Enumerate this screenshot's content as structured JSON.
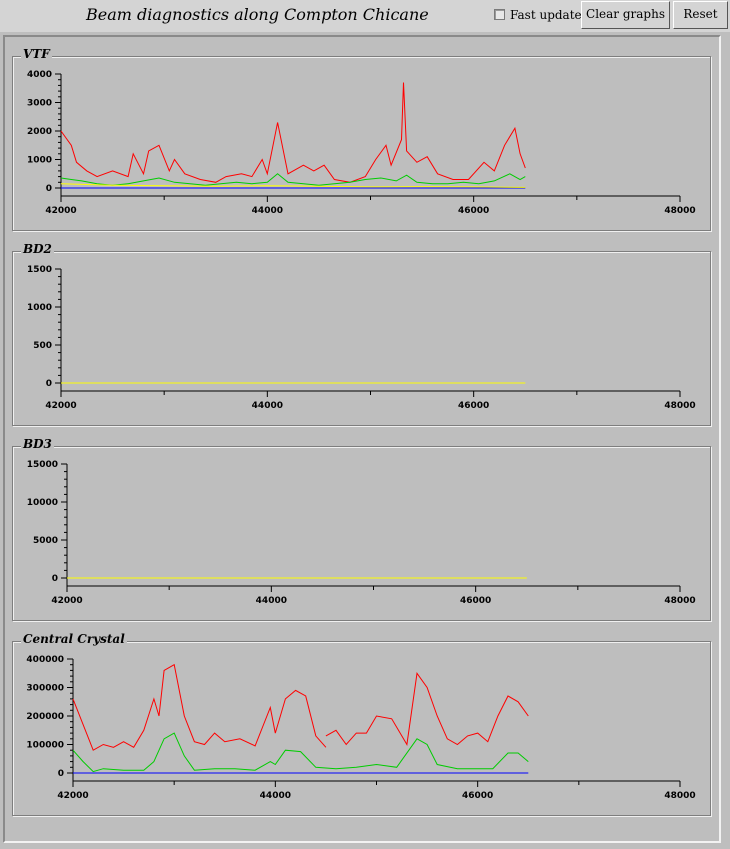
{
  "header": {
    "title": "Beam diagnostics along Compton Chicane",
    "fast_updates_label": "Fast updates",
    "fast_updates_checked": false,
    "clear_graphs_label": "Clear graphs",
    "reset_label": "Reset"
  },
  "colors": {
    "background": "#bebebe",
    "red": "#ff0000",
    "green": "#00cc00",
    "blue": "#0000ff",
    "yellow": "#ffff00"
  },
  "chart_data": [
    {
      "type": "line",
      "title": "VTF",
      "xlim": [
        42000,
        48000
      ],
      "ylim": [
        0,
        4000
      ],
      "x_ticks": [
        42000,
        44000,
        46000,
        48000
      ],
      "y_ticks": [
        0,
        1000,
        2000,
        3000,
        4000
      ],
      "series": [
        {
          "color": "#ff0000",
          "points": [
            [
              42000,
              2000
            ],
            [
              42100,
              1500
            ],
            [
              42150,
              900
            ],
            [
              42250,
              600
            ],
            [
              42350,
              400
            ],
            [
              42500,
              600
            ],
            [
              42650,
              400
            ],
            [
              42700,
              1200
            ],
            [
              42800,
              500
            ],
            [
              42850,
              1300
            ],
            [
              42950,
              1500
            ],
            [
              43050,
              600
            ],
            [
              43100,
              1000
            ],
            [
              43200,
              500
            ],
            [
              43350,
              300
            ],
            [
              43500,
              200
            ],
            [
              43600,
              400
            ],
            [
              43750,
              500
            ],
            [
              43850,
              400
            ],
            [
              43950,
              1000
            ],
            [
              44000,
              500
            ],
            [
              44100,
              2300
            ],
            [
              44200,
              500
            ],
            [
              44350,
              800
            ],
            [
              44450,
              600
            ],
            [
              44550,
              800
            ],
            [
              44650,
              300
            ],
            [
              44800,
              200
            ],
            [
              44950,
              400
            ],
            [
              45050,
              1000
            ],
            [
              45150,
              1500
            ],
            [
              45200,
              800
            ],
            [
              45300,
              1700
            ],
            [
              45320,
              3700
            ],
            [
              45350,
              1300
            ],
            [
              45450,
              900
            ],
            [
              45550,
              1100
            ],
            [
              45650,
              500
            ],
            [
              45800,
              300
            ],
            [
              45950,
              300
            ],
            [
              46100,
              900
            ],
            [
              46200,
              600
            ],
            [
              46300,
              1500
            ],
            [
              46400,
              2100
            ],
            [
              46450,
              1200
            ],
            [
              46500,
              700
            ]
          ]
        },
        {
          "color": "#00cc00",
          "points": [
            [
              42000,
              350
            ],
            [
              42100,
              300
            ],
            [
              42200,
              250
            ],
            [
              42350,
              150
            ],
            [
              42500,
              100
            ],
            [
              42650,
              150
            ],
            [
              42800,
              250
            ],
            [
              42950,
              350
            ],
            [
              43100,
              200
            ],
            [
              43250,
              150
            ],
            [
              43400,
              100
            ],
            [
              43550,
              150
            ],
            [
              43700,
              200
            ],
            [
              43850,
              150
            ],
            [
              44000,
              200
            ],
            [
              44100,
              500
            ],
            [
              44200,
              200
            ],
            [
              44350,
              150
            ],
            [
              44500,
              100
            ],
            [
              44650,
              150
            ],
            [
              44800,
              200
            ],
            [
              44950,
              300
            ],
            [
              45100,
              350
            ],
            [
              45250,
              250
            ],
            [
              45350,
              450
            ],
            [
              45450,
              200
            ],
            [
              45600,
              150
            ],
            [
              45750,
              150
            ],
            [
              45900,
              200
            ],
            [
              46050,
              150
            ],
            [
              46200,
              250
            ],
            [
              46350,
              500
            ],
            [
              46450,
              300
            ],
            [
              46500,
              400
            ]
          ]
        },
        {
          "color": "#0000ff",
          "points": [
            [
              42000,
              0
            ],
            [
              42500,
              0
            ],
            [
              43000,
              0
            ],
            [
              43500,
              0
            ],
            [
              44000,
              0
            ],
            [
              44500,
              0
            ],
            [
              45000,
              0
            ],
            [
              45500,
              0
            ],
            [
              46000,
              0
            ],
            [
              46500,
              0
            ]
          ]
        },
        {
          "color": "#ffff00",
          "points": [
            [
              42000,
              150
            ],
            [
              42500,
              100
            ],
            [
              43000,
              80
            ],
            [
              43500,
              60
            ],
            [
              44000,
              80
            ],
            [
              44500,
              60
            ],
            [
              45000,
              40
            ],
            [
              45500,
              50
            ],
            [
              46000,
              40
            ],
            [
              46500,
              20
            ]
          ]
        }
      ]
    },
    {
      "type": "line",
      "title": "BD2",
      "xlim": [
        42000,
        48000
      ],
      "ylim": [
        0,
        1500
      ],
      "x_ticks": [
        42000,
        44000,
        46000,
        48000
      ],
      "y_ticks": [
        0,
        500,
        1000,
        1500
      ],
      "series": [
        {
          "color": "#ffff00",
          "points": [
            [
              42000,
              0
            ],
            [
              46500,
              0
            ]
          ]
        }
      ]
    },
    {
      "type": "line",
      "title": "BD3",
      "xlim": [
        42000,
        48000
      ],
      "ylim": [
        0,
        15000
      ],
      "x_ticks": [
        42000,
        44000,
        46000,
        48000
      ],
      "y_ticks": [
        0,
        5000,
        10000,
        15000
      ],
      "series": [
        {
          "color": "#ffff00",
          "points": [
            [
              42000,
              0
            ],
            [
              46500,
              0
            ]
          ]
        }
      ]
    },
    {
      "type": "line",
      "title": "Central Crystal",
      "xlim": [
        42000,
        48000
      ],
      "ylim": [
        0,
        400000
      ],
      "x_ticks": [
        42000,
        44000,
        46000,
        48000
      ],
      "y_ticks": [
        0,
        100000,
        200000,
        300000,
        400000
      ],
      "series": [
        {
          "color": "#ff0000",
          "points": [
            [
              42000,
              260000
            ],
            [
              42100,
              170000
            ],
            [
              42200,
              80000
            ],
            [
              42300,
              100000
            ],
            [
              42400,
              90000
            ],
            [
              42500,
              110000
            ],
            [
              42600,
              90000
            ],
            [
              42700,
              150000
            ],
            [
              42800,
              260000
            ],
            [
              42850,
              200000
            ],
            [
              42900,
              360000
            ],
            [
              43000,
              380000
            ],
            [
              43100,
              200000
            ],
            [
              43200,
              110000
            ],
            [
              43300,
              100000
            ],
            [
              43400,
              140000
            ],
            [
              43500,
              110000
            ],
            [
              43650,
              120000
            ],
            [
              43800,
              95000
            ],
            [
              43950,
              230000
            ],
            [
              44000,
              140000
            ],
            [
              44100,
              260000
            ],
            [
              44200,
              290000
            ],
            [
              44300,
              270000
            ],
            [
              44400,
              130000
            ],
            [
              44500,
              90000
            ]
          ]
        },
        {
          "color": "#ff0000",
          "points": [
            [
              44500,
              130000
            ],
            [
              44600,
              150000
            ],
            [
              44700,
              100000
            ],
            [
              44800,
              140000
            ],
            [
              44900,
              140000
            ],
            [
              45000,
              200000
            ],
            [
              45150,
              190000
            ],
            [
              45300,
              100000
            ],
            [
              45400,
              350000
            ],
            [
              45500,
              300000
            ],
            [
              45600,
              200000
            ],
            [
              45700,
              120000
            ],
            [
              45800,
              100000
            ],
            [
              45900,
              130000
            ],
            [
              46000,
              140000
            ],
            [
              46100,
              110000
            ],
            [
              46200,
              200000
            ],
            [
              46300,
              270000
            ],
            [
              46400,
              250000
            ],
            [
              46500,
              200000
            ]
          ]
        },
        {
          "color": "#00cc00",
          "points": [
            [
              42000,
              80000
            ],
            [
              42100,
              40000
            ],
            [
              42200,
              5000
            ],
            [
              42300,
              15000
            ],
            [
              42500,
              10000
            ],
            [
              42700,
              10000
            ],
            [
              42800,
              40000
            ],
            [
              42900,
              120000
            ],
            [
              43000,
              140000
            ],
            [
              43100,
              60000
            ],
            [
              43200,
              10000
            ],
            [
              43400,
              15000
            ],
            [
              43600,
              15000
            ],
            [
              43800,
              10000
            ],
            [
              43950,
              40000
            ],
            [
              44000,
              30000
            ],
            [
              44100,
              80000
            ],
            [
              44250,
              75000
            ],
            [
              44400,
              20000
            ],
            [
              44600,
              15000
            ],
            [
              44800,
              20000
            ],
            [
              45000,
              30000
            ],
            [
              45200,
              20000
            ],
            [
              45400,
              120000
            ],
            [
              45500,
              100000
            ],
            [
              45600,
              30000
            ],
            [
              45800,
              15000
            ],
            [
              46000,
              15000
            ],
            [
              46150,
              15000
            ],
            [
              46300,
              70000
            ],
            [
              46400,
              70000
            ],
            [
              46500,
              40000
            ]
          ]
        },
        {
          "color": "#0000ff",
          "points": [
            [
              42000,
              0
            ],
            [
              46500,
              0
            ]
          ]
        }
      ]
    }
  ]
}
